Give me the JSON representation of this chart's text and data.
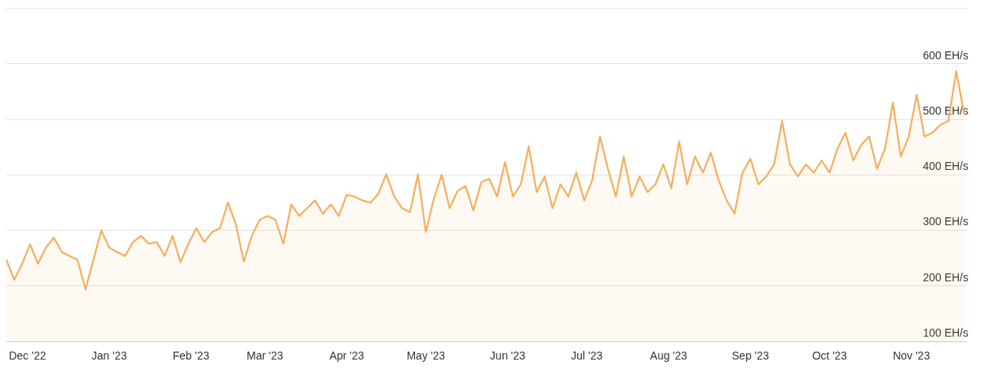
{
  "chart_data": {
    "type": "area",
    "x": [
      "2022-11-23",
      "2022-11-26",
      "2022-11-29",
      "2022-12-02",
      "2022-12-05",
      "2022-12-08",
      "2022-12-11",
      "2022-12-14",
      "2022-12-17",
      "2022-12-20",
      "2022-12-23",
      "2022-12-26",
      "2022-12-29",
      "2023-01-01",
      "2023-01-04",
      "2023-01-07",
      "2023-01-10",
      "2023-01-13",
      "2023-01-16",
      "2023-01-19",
      "2023-01-22",
      "2023-01-25",
      "2023-01-28",
      "2023-01-31",
      "2023-02-03",
      "2023-02-06",
      "2023-02-09",
      "2023-02-12",
      "2023-02-15",
      "2023-02-18",
      "2023-02-21",
      "2023-02-24",
      "2023-02-27",
      "2023-03-02",
      "2023-03-05",
      "2023-03-08",
      "2023-03-11",
      "2023-03-14",
      "2023-03-17",
      "2023-03-20",
      "2023-03-23",
      "2023-03-26",
      "2023-03-29",
      "2023-04-01",
      "2023-04-04",
      "2023-04-07",
      "2023-04-10",
      "2023-04-13",
      "2023-04-16",
      "2023-04-19",
      "2023-04-22",
      "2023-04-25",
      "2023-04-28",
      "2023-05-01",
      "2023-05-04",
      "2023-05-07",
      "2023-05-10",
      "2023-05-13",
      "2023-05-16",
      "2023-05-19",
      "2023-05-22",
      "2023-05-25",
      "2023-05-28",
      "2023-05-31",
      "2023-06-03",
      "2023-06-06",
      "2023-06-09",
      "2023-06-12",
      "2023-06-15",
      "2023-06-18",
      "2023-06-21",
      "2023-06-24",
      "2023-06-27",
      "2023-06-30",
      "2023-07-03",
      "2023-07-06",
      "2023-07-09",
      "2023-07-12",
      "2023-07-15",
      "2023-07-18",
      "2023-07-21",
      "2023-07-24",
      "2023-07-27",
      "2023-07-30",
      "2023-08-02",
      "2023-08-05",
      "2023-08-08",
      "2023-08-11",
      "2023-08-14",
      "2023-08-17",
      "2023-08-20",
      "2023-08-23",
      "2023-08-26",
      "2023-08-29",
      "2023-09-01",
      "2023-09-04",
      "2023-09-07",
      "2023-09-10",
      "2023-09-13",
      "2023-09-16",
      "2023-09-19",
      "2023-09-22",
      "2023-09-25",
      "2023-09-28",
      "2023-10-01",
      "2023-10-04",
      "2023-10-07",
      "2023-10-10",
      "2023-10-13",
      "2023-10-16",
      "2023-10-19",
      "2023-10-22",
      "2023-10-25",
      "2023-10-28",
      "2023-10-31",
      "2023-11-03",
      "2023-11-06",
      "2023-11-09",
      "2023-11-12",
      "2023-11-15",
      "2023-11-18",
      "2023-11-21"
    ],
    "series": [
      {
        "color": "#f5ae5c",
        "values": [
          247,
          211,
          240,
          275,
          240,
          269,
          287,
          261,
          254,
          247,
          194,
          247,
          300,
          269,
          261,
          254,
          279,
          290,
          276,
          279,
          254,
          290,
          243,
          276,
          304,
          279,
          297,
          304,
          350,
          311,
          244,
          290,
          319,
          326,
          319,
          276,
          347,
          326,
          340,
          354,
          330,
          347,
          326,
          364,
          361,
          354,
          350,
          366,
          401,
          361,
          340,
          333,
          401,
          297,
          357,
          400,
          340,
          371,
          380,
          336,
          387,
          393,
          361,
          423,
          361,
          383,
          451,
          369,
          397,
          340,
          383,
          361,
          404,
          354,
          390,
          469,
          411,
          361,
          433,
          361,
          397,
          369,
          383,
          419,
          376,
          460,
          383,
          433,
          404,
          440,
          390,
          354,
          330,
          404,
          429,
          383,
          397,
          419,
          497,
          419,
          397,
          419,
          404,
          426,
          404,
          447,
          476,
          426,
          454,
          469,
          411,
          447,
          530,
          433,
          469,
          544,
          469,
          476,
          490,
          497,
          587,
          510
        ]
      }
    ],
    "xlim": [
      "2022-11-23",
      "2023-11-22"
    ],
    "xticks": [
      {
        "value": "2022-12-01",
        "label": "Dec '22"
      },
      {
        "value": "2023-01-01",
        "label": "Jan '23"
      },
      {
        "value": "2023-02-01",
        "label": "Feb '23"
      },
      {
        "value": "2023-03-01",
        "label": "Mar '23"
      },
      {
        "value": "2023-04-01",
        "label": "Apr '23"
      },
      {
        "value": "2023-05-01",
        "label": "May '23"
      },
      {
        "value": "2023-06-01",
        "label": "Jun '23"
      },
      {
        "value": "2023-07-01",
        "label": "Jul '23"
      },
      {
        "value": "2023-08-01",
        "label": "Aug '23"
      },
      {
        "value": "2023-09-01",
        "label": "Sep '23"
      },
      {
        "value": "2023-10-01",
        "label": "Oct '23"
      },
      {
        "value": "2023-11-01",
        "label": "Nov '23"
      }
    ],
    "ylim": [
      100,
      700
    ],
    "yticks": [
      {
        "value": 100,
        "label": "100 EH/s"
      },
      {
        "value": 200,
        "label": "200 EH/s"
      },
      {
        "value": 300,
        "label": "300 EH/s"
      },
      {
        "value": 400,
        "label": "400 EH/s"
      },
      {
        "value": 500,
        "label": "500 EH/s"
      },
      {
        "value": 600,
        "label": "600 EH/s"
      },
      {
        "value": 700,
        "label": null
      }
    ],
    "grid": "y",
    "marker": "none",
    "line_style": "solid"
  }
}
